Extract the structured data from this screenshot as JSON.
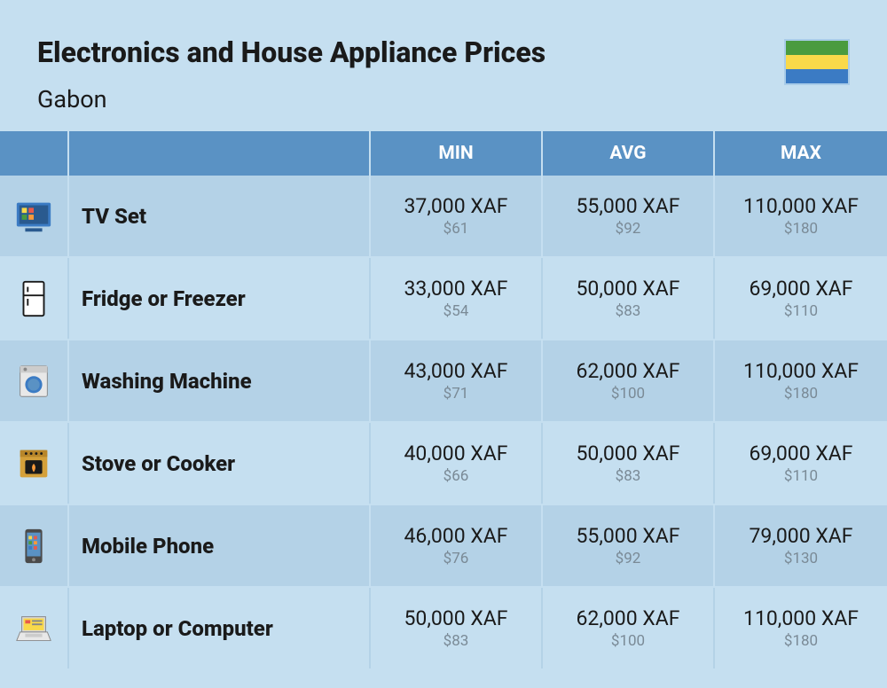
{
  "header": {
    "title": "Electronics and House Appliance Prices",
    "country": "Gabon",
    "flag_colors": [
      "#4a9b3f",
      "#f9d94a",
      "#3b7bc4"
    ]
  },
  "table": {
    "columns": [
      "MIN",
      "AVG",
      "MAX"
    ],
    "header_bg": "#5a92c4",
    "header_fg": "#ffffff",
    "row_bg_odd": "#b4d2e7",
    "row_bg_even": "#c5dff0",
    "price_main_color": "#1a1a1a",
    "price_sub_color": "#7a8a96",
    "rows": [
      {
        "icon": "tv-icon",
        "name": "TV Set",
        "min": {
          "xaf": "37,000 XAF",
          "usd": "$61"
        },
        "avg": {
          "xaf": "55,000 XAF",
          "usd": "$92"
        },
        "max": {
          "xaf": "110,000 XAF",
          "usd": "$180"
        }
      },
      {
        "icon": "fridge-icon",
        "name": "Fridge or Freezer",
        "min": {
          "xaf": "33,000 XAF",
          "usd": "$54"
        },
        "avg": {
          "xaf": "50,000 XAF",
          "usd": "$83"
        },
        "max": {
          "xaf": "69,000 XAF",
          "usd": "$110"
        }
      },
      {
        "icon": "washer-icon",
        "name": "Washing Machine",
        "min": {
          "xaf": "43,000 XAF",
          "usd": "$71"
        },
        "avg": {
          "xaf": "62,000 XAF",
          "usd": "$100"
        },
        "max": {
          "xaf": "110,000 XAF",
          "usd": "$180"
        }
      },
      {
        "icon": "stove-icon",
        "name": "Stove or Cooker",
        "min": {
          "xaf": "40,000 XAF",
          "usd": "$66"
        },
        "avg": {
          "xaf": "50,000 XAF",
          "usd": "$83"
        },
        "max": {
          "xaf": "69,000 XAF",
          "usd": "$110"
        }
      },
      {
        "icon": "phone-icon",
        "name": "Mobile Phone",
        "min": {
          "xaf": "46,000 XAF",
          "usd": "$76"
        },
        "avg": {
          "xaf": "55,000 XAF",
          "usd": "$92"
        },
        "max": {
          "xaf": "79,000 XAF",
          "usd": "$130"
        }
      },
      {
        "icon": "laptop-icon",
        "name": "Laptop or Computer",
        "min": {
          "xaf": "50,000 XAF",
          "usd": "$83"
        },
        "avg": {
          "xaf": "62,000 XAF",
          "usd": "$100"
        },
        "max": {
          "xaf": "110,000 XAF",
          "usd": "$180"
        }
      }
    ]
  }
}
